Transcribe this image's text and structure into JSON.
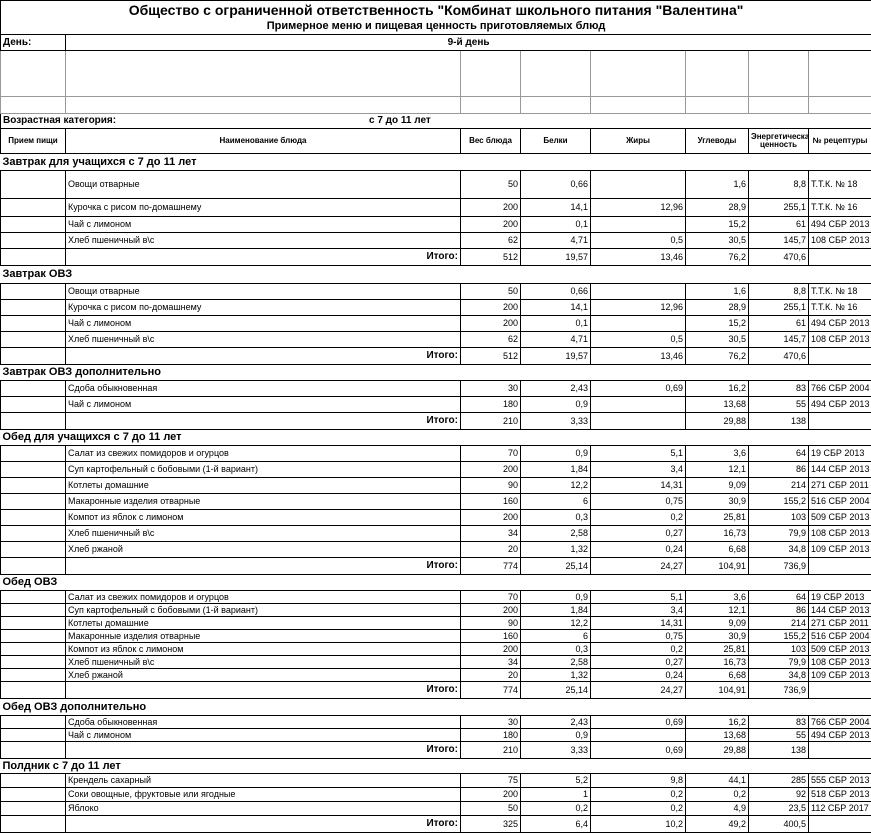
{
  "header": {
    "title": "Общество с ограниченной ответственность \"Комбинат школьного питания \"Валентина\"",
    "subtitle": "Примерное меню и пищевая ценность приготовляемых блюд",
    "day_label": "День:",
    "day_value": "9-й день",
    "age_label": "Возрастная категория:",
    "age_value": "с 7 до 11 лет"
  },
  "table": {
    "columns": [
      "Прием пищи",
      "Наименование блюда",
      "Вес блюда",
      "Белки",
      "Жиры",
      "Углеводы",
      "Энергетическая ценность",
      "№ рецептуры"
    ],
    "sections": [
      {
        "title": "Завтрак для учащихся с 7 до 11 лет",
        "rows": [
          [
            "Овощи отварные",
            "50",
            "0,66",
            null,
            "1,6",
            "8,8",
            "Т.Т.К. № 18"
          ],
          [
            "Курочка с рисом по-домашнему",
            "200",
            "14,1",
            "12,96",
            "28,9",
            "255,1",
            "Т.Т.К. № 16"
          ],
          [
            "Чай с лимоном",
            "200",
            "0,1",
            null,
            "15,2",
            "61",
            "494 СБР 2013"
          ],
          [
            "Хлеб пшеничный в\\с",
            "62",
            "4,71",
            "0,5",
            "30,5",
            "145,7",
            "108 СБР 2013"
          ]
        ],
        "total": {
          "label": "Итого:",
          "values": [
            "512",
            "19,57",
            "13,46",
            "76,2",
            "470,6"
          ]
        }
      },
      {
        "title": "Завтрак ОВЗ",
        "rows": [
          [
            "Овощи отварные",
            "50",
            "0,66",
            null,
            "1,6",
            "8,8",
            "Т.Т.К. № 18"
          ],
          [
            "Курочка с рисом по-домашнему",
            "200",
            "14,1",
            "12,96",
            "28,9",
            "255,1",
            "Т.Т.К. № 16"
          ],
          [
            "Чай с лимоном",
            "200",
            "0,1",
            null,
            "15,2",
            "61",
            "494 СБР 2013"
          ],
          [
            "Хлеб пшеничный в\\с",
            "62",
            "4,71",
            "0,5",
            "30,5",
            "145,7",
            "108 СБР 2013"
          ]
        ],
        "total": {
          "label": "Итого:",
          "values": [
            "512",
            "19,57",
            "13,46",
            "76,2",
            "470,6"
          ]
        }
      },
      {
        "title": "Завтрак ОВЗ дополнительно",
        "rows": [
          [
            "Сдоба обыкновенная",
            "30",
            "2,43",
            "0,69",
            "16,2",
            "83",
            "766 СБР 2004"
          ],
          [
            "Чай с лимоном",
            "180",
            "0,9",
            null,
            "13,68",
            "55",
            "494 СБР 2013"
          ]
        ],
        "total": {
          "label": "Итого:",
          "values": [
            "210",
            "3,33",
            null,
            "29,88",
            "138"
          ]
        }
      },
      {
        "title": "Обед для учащихся с 7 до 11 лет",
        "rows": [
          [
            "Салат из свежих помидоров и огурцов",
            "70",
            "0,9",
            "5,1",
            "3,6",
            "64",
            "19 СБР 2013"
          ],
          [
            "Суп картофельный с бобовыми (1-й вариант)",
            "200",
            "1,84",
            "3,4",
            "12,1",
            "86",
            "144 СБР 2013"
          ],
          [
            "Котлеты домашние",
            "90",
            "12,2",
            "14,31",
            "9,09",
            "214",
            "271 СБР 2011"
          ],
          [
            "Макаронные изделия отварные",
            "160",
            "6",
            "0,75",
            "30,9",
            "155,2",
            "516 СБР 2004"
          ],
          [
            "Компот из яблок с лимоном",
            "200",
            "0,3",
            "0,2",
            "25,81",
            "103",
            "509 СБР 2013"
          ],
          [
            "Хлеб пшеничный в\\с",
            "34",
            "2,58",
            "0,27",
            "16,73",
            "79,9",
            "108 СБР 2013"
          ],
          [
            "Хлеб ржаной",
            "20",
            "1,32",
            "0,24",
            "6,68",
            "34,8",
            "109 СБР 2013"
          ]
        ],
        "total": {
          "label": "Итого:",
          "values": [
            "774",
            "25,14",
            "24,27",
            "104,91",
            "736,9"
          ]
        }
      },
      {
        "title": "Обед ОВЗ",
        "rows": [
          [
            "Салат из свежих помидоров и огурцов",
            "70",
            "0,9",
            "5,1",
            "3,6",
            "64",
            "19 СБР 2013"
          ],
          [
            "Суп картофельный с бобовыми (1-й вариант)",
            "200",
            "1,84",
            "3,4",
            "12,1",
            "86",
            "144 СБР 2013"
          ],
          [
            "Котлеты домашние",
            "90",
            "12,2",
            "14,31",
            "9,09",
            "214",
            "271 СБР 2011"
          ],
          [
            "Макаронные изделия отварные",
            "160",
            "6",
            "0,75",
            "30,9",
            "155,2",
            "516 СБР 2004"
          ],
          [
            "Компот из яблок с лимоном",
            "200",
            "0,3",
            "0,2",
            "25,81",
            "103",
            "509 СБР 2013"
          ],
          [
            "Хлеб пшеничный в\\с",
            "34",
            "2,58",
            "0,27",
            "16,73",
            "79,9",
            "108 СБР 2013"
          ],
          [
            "Хлеб ржаной",
            "20",
            "1,32",
            "0,24",
            "6,68",
            "34,8",
            "109 СБР 2013"
          ]
        ],
        "total": {
          "label": "Итого:",
          "values": [
            "774",
            "25,14",
            "24,27",
            "104,91",
            "736,9"
          ]
        }
      },
      {
        "title": "Обед ОВЗ дополнительно",
        "rows": [
          [
            "Сдоба обыкновенная",
            "30",
            "2,43",
            "0,69",
            "16,2",
            "83",
            "766 СБР 2004"
          ],
          [
            "Чай с лимоном",
            "180",
            "0,9",
            null,
            "13,68",
            "55",
            "494 СБР 2013"
          ]
        ],
        "total": {
          "label": "Итого:",
          "values": [
            "210",
            "3,33",
            "0,69",
            "29,88",
            "138"
          ]
        }
      },
      {
        "title": "Полдник с 7 до 11 лет",
        "rows": [
          [
            "Крендель сахарный",
            "75",
            "5,2",
            "9,8",
            "44,1",
            "285",
            "555 СБР 2013"
          ],
          [
            "Соки овощные, фруктовые или ягодные",
            "200",
            "1",
            "0,2",
            "0,2",
            "92",
            "518 СБР 2013"
          ],
          [
            "Яблоко",
            "50",
            "0,2",
            "0,2",
            "4,9",
            "23,5",
            "112 СБР 2017"
          ]
        ],
        "total": {
          "label": "Итого:",
          "values": [
            "325",
            "6,4",
            "10,2",
            "49,2",
            "400,5"
          ]
        }
      }
    ]
  }
}
